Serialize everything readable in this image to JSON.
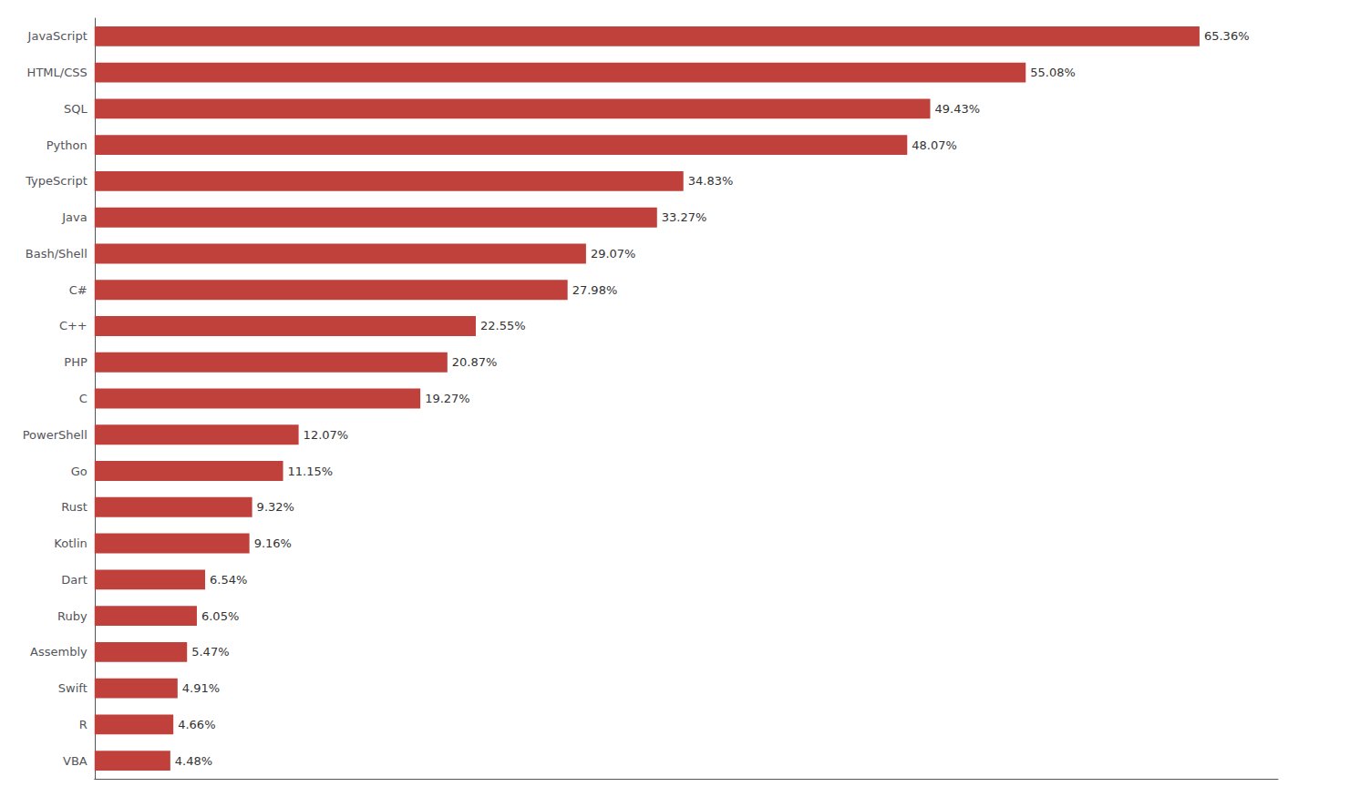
{
  "chart_data": {
    "type": "bar",
    "orientation": "horizontal",
    "categories": [
      "JavaScript",
      "HTML/CSS",
      "SQL",
      "Python",
      "TypeScript",
      "Java",
      "Bash/Shell",
      "C#",
      "C++",
      "PHP",
      "C",
      "PowerShell",
      "Go",
      "Rust",
      "Kotlin",
      "Dart",
      "Ruby",
      "Assembly",
      "Swift",
      "R",
      "VBA"
    ],
    "values": [
      65.36,
      55.08,
      49.43,
      48.07,
      34.83,
      33.27,
      29.07,
      27.98,
      22.55,
      20.87,
      19.27,
      12.07,
      11.15,
      9.32,
      9.16,
      6.54,
      6.05,
      5.47,
      4.91,
      4.66,
      4.48
    ],
    "value_labels": [
      "65.36%",
      "55.08%",
      "49.43%",
      "48.07%",
      "34.83%",
      "33.27%",
      "29.07%",
      "27.98%",
      "22.55%",
      "20.87%",
      "19.27%",
      "12.07%",
      "11.15%",
      "9.32%",
      "9.16%",
      "6.54%",
      "6.05%",
      "5.47%",
      "4.91%",
      "4.66%",
      "4.48%"
    ],
    "color": "#c0413b",
    "xlim": [
      0,
      70
    ],
    "data_labels": true,
    "tick_labels": "y",
    "grid": false
  }
}
